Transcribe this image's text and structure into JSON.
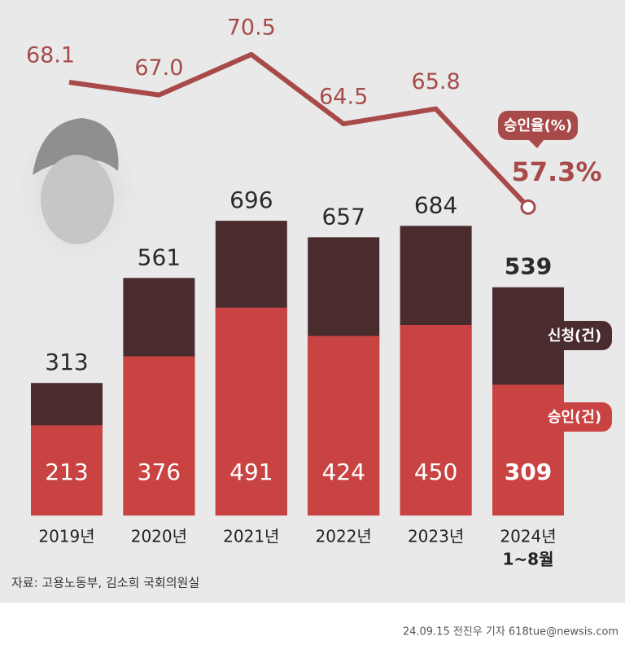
{
  "chart_data": {
    "type": "bar_line",
    "categories": [
      "2019년",
      "2020년",
      "2021년",
      "2022년",
      "2023년",
      "2024년"
    ],
    "last_category_note": "1~8월",
    "series": [
      {
        "name": "신청(건)",
        "color": "#4a2c2e",
        "values": [
          313,
          561,
          696,
          657,
          684,
          539
        ]
      },
      {
        "name": "승인(건)",
        "color": "#c94343",
        "values": [
          213,
          376,
          491,
          424,
          450,
          309
        ]
      }
    ],
    "line": {
      "name": "승인율(%)",
      "color": "#a84a4a",
      "values": [
        68.1,
        67.0,
        70.5,
        64.5,
        65.8,
        57.3
      ],
      "value_labels": [
        "68.1",
        "67.0",
        "70.5",
        "64.5",
        "65.8",
        "57.3%"
      ]
    },
    "source": "자료: 고용노동부, 김소희 국회의원실",
    "credit": "24.09.15 전진우 기자 618tue@newsis.com"
  }
}
